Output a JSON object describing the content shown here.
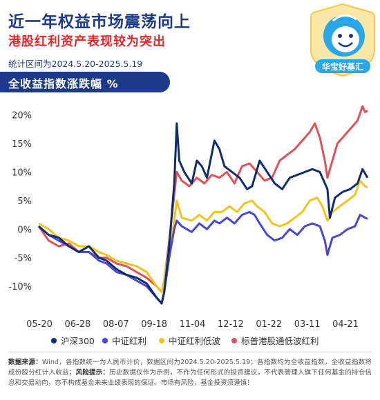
{
  "header": {
    "title": "近一年权益市场震荡向上",
    "subtitle": "港股红利资产表现较为突出",
    "period": "统计区间为2024.5.20-2025.5.19",
    "banner": "全收益指数涨跌幅 %"
  },
  "brand": {
    "name": "华宝好基汇"
  },
  "colors": {
    "navy": "#1d3a8a",
    "red": "#e2282d",
    "series": [
      "#0f2c6e",
      "#4747d1",
      "#f2c31c",
      "#e15258"
    ]
  },
  "chart_data": {
    "type": "line",
    "title": "全收益指数涨跌幅 %",
    "x_ticks": [
      "05-20",
      "06-28",
      "08-07",
      "09-18",
      "11-04",
      "12-12",
      "01-22",
      "03-11",
      "04-21"
    ],
    "y_ticks": [
      "20%",
      "15%",
      "10%",
      "5%",
      "0%",
      "-5%",
      "-10%"
    ],
    "ylim": [
      -13,
      22
    ],
    "grid": false,
    "legend": "bottom",
    "series": [
      {
        "name": "沪深300",
        "points": [
          [
            0,
            0.5
          ],
          [
            4,
            -1
          ],
          [
            8,
            -1.5
          ],
          [
            12,
            -3
          ],
          [
            16,
            -4
          ],
          [
            20,
            -3
          ],
          [
            24,
            -5
          ],
          [
            27,
            -5.5
          ],
          [
            31,
            -7
          ],
          [
            35,
            -8
          ],
          [
            39,
            -8.5
          ],
          [
            43,
            -9.5
          ],
          [
            47,
            -12
          ],
          [
            49,
            -13
          ],
          [
            50,
            -11
          ],
          [
            52,
            -3
          ],
          [
            54,
            8
          ],
          [
            55,
            18.5
          ],
          [
            56,
            12
          ],
          [
            58,
            10
          ],
          [
            61,
            8
          ],
          [
            63,
            12
          ],
          [
            65,
            11
          ],
          [
            67,
            9
          ],
          [
            70,
            15.5
          ],
          [
            72,
            14
          ],
          [
            74,
            11
          ],
          [
            77,
            10
          ],
          [
            80,
            9
          ],
          [
            83,
            7
          ],
          [
            85,
            7.5
          ],
          [
            88,
            12
          ],
          [
            91,
            10
          ],
          [
            94,
            8
          ],
          [
            97,
            7
          ],
          [
            100,
            9
          ],
          [
            103,
            9.5
          ],
          [
            106,
            10
          ],
          [
            109,
            10.5
          ],
          [
            112,
            10
          ],
          [
            115,
            7
          ],
          [
            116,
            2
          ],
          [
            118,
            5.5
          ],
          [
            121,
            6.5
          ],
          [
            124,
            7
          ],
          [
            127,
            8
          ],
          [
            129,
            10.5
          ],
          [
            131,
            9
          ]
        ]
      },
      {
        "name": "中证红利",
        "points": [
          [
            0,
            0.5
          ],
          [
            4,
            -1
          ],
          [
            8,
            -2
          ],
          [
            12,
            -3
          ],
          [
            16,
            -4
          ],
          [
            20,
            -4
          ],
          [
            24,
            -5.5
          ],
          [
            27,
            -6
          ],
          [
            31,
            -7.5
          ],
          [
            35,
            -8
          ],
          [
            39,
            -9
          ],
          [
            43,
            -10
          ],
          [
            47,
            -12
          ],
          [
            49,
            -13
          ],
          [
            50,
            -11
          ],
          [
            52,
            -5
          ],
          [
            54,
            0
          ],
          [
            55,
            1.5
          ],
          [
            57,
            0.5
          ],
          [
            61,
            -0.5
          ],
          [
            64,
            1
          ],
          [
            67,
            0
          ],
          [
            70,
            1.5
          ],
          [
            72,
            1
          ],
          [
            75,
            2
          ],
          [
            78,
            1
          ],
          [
            81,
            2.5
          ],
          [
            84,
            3
          ],
          [
            86,
            2.5
          ],
          [
            88,
            1
          ],
          [
            91,
            -1
          ],
          [
            94,
            -2
          ],
          [
            97,
            -1.5
          ],
          [
            100,
            0
          ],
          [
            103,
            -1
          ],
          [
            106,
            0.5
          ],
          [
            109,
            1
          ],
          [
            112,
            0.5
          ],
          [
            114,
            -2
          ],
          [
            115,
            -4.5
          ],
          [
            117,
            -1.5
          ],
          [
            120,
            -1
          ],
          [
            123,
            0
          ],
          [
            126,
            0.5
          ],
          [
            128,
            2.5
          ],
          [
            130,
            2
          ],
          [
            131,
            1.8
          ]
        ]
      },
      {
        "name": "中证红利低波",
        "points": [
          [
            0,
            1
          ],
          [
            4,
            0
          ],
          [
            8,
            -1.5
          ],
          [
            12,
            -2
          ],
          [
            16,
            -3
          ],
          [
            20,
            -3
          ],
          [
            24,
            -4
          ],
          [
            27,
            -4.5
          ],
          [
            31,
            -5.5
          ],
          [
            35,
            -6
          ],
          [
            39,
            -6.5
          ],
          [
            43,
            -7.5
          ],
          [
            47,
            -10
          ],
          [
            49,
            -11
          ],
          [
            50,
            -9
          ],
          [
            52,
            -3
          ],
          [
            54,
            1.5
          ],
          [
            55,
            5
          ],
          [
            57,
            2
          ],
          [
            61,
            1.5
          ],
          [
            64,
            2.5
          ],
          [
            67,
            1.5
          ],
          [
            70,
            3
          ],
          [
            73,
            3
          ],
          [
            76,
            4
          ],
          [
            79,
            3
          ],
          [
            82,
            4.5
          ],
          [
            85,
            5
          ],
          [
            87,
            4
          ],
          [
            90,
            3
          ],
          [
            93,
            1
          ],
          [
            96,
            0.5
          ],
          [
            99,
            1
          ],
          [
            102,
            2
          ],
          [
            105,
            3
          ],
          [
            108,
            5
          ],
          [
            111,
            5.5
          ],
          [
            113,
            4
          ],
          [
            115,
            1.5
          ],
          [
            117,
            3
          ],
          [
            120,
            4
          ],
          [
            123,
            5
          ],
          [
            126,
            6
          ],
          [
            128,
            8.5
          ],
          [
            130,
            7.5
          ],
          [
            131,
            7.3
          ]
        ]
      },
      {
        "name": "标普港股通低波红利",
        "points": [
          [
            0,
            0.5
          ],
          [
            4,
            -2
          ],
          [
            8,
            -3
          ],
          [
            12,
            -2.5
          ],
          [
            16,
            -4
          ],
          [
            20,
            -4
          ],
          [
            24,
            -5
          ],
          [
            27,
            -5
          ],
          [
            31,
            -6
          ],
          [
            35,
            -6.5
          ],
          [
            39,
            -7.5
          ],
          [
            43,
            -8.5
          ],
          [
            47,
            -10
          ],
          [
            49,
            -11
          ],
          [
            50,
            -9
          ],
          [
            52,
            -2
          ],
          [
            54,
            6
          ],
          [
            55,
            10
          ],
          [
            57,
            8.5
          ],
          [
            60,
            7.5
          ],
          [
            63,
            9
          ],
          [
            66,
            8
          ],
          [
            69,
            9.5
          ],
          [
            72,
            9
          ],
          [
            75,
            10
          ],
          [
            78,
            8
          ],
          [
            81,
            11
          ],
          [
            84,
            11.5
          ],
          [
            87,
            10
          ],
          [
            90,
            8.5
          ],
          [
            93,
            9
          ],
          [
            96,
            12
          ],
          [
            99,
            13
          ],
          [
            102,
            14
          ],
          [
            105,
            15.5
          ],
          [
            108,
            17
          ],
          [
            110,
            18.5
          ],
          [
            112,
            16
          ],
          [
            114,
            12
          ],
          [
            115,
            9
          ],
          [
            117,
            12
          ],
          [
            119,
            15
          ],
          [
            121,
            16
          ],
          [
            124,
            17.5
          ],
          [
            127,
            19
          ],
          [
            129,
            21.5
          ],
          [
            130,
            20.5
          ],
          [
            131,
            20.7
          ]
        ]
      }
    ]
  },
  "notes": {
    "source_label": "数据来源：",
    "source_text": "Wind，各指数统一为人民币计价，数据区间为2024.5.20-2025.5.19；各指数均为全收益指数，全收益指数将成份股分红计入收益；",
    "risk_label": "风险提示：",
    "risk_text": "历史数据仅作为示例，不作为任何形式的投资建议，不代表管理人旗下任何基金的持仓信息和交易动向，亦不构成基金未来业绩表现的保证。市场有风险，基金投资须谨慎！"
  }
}
